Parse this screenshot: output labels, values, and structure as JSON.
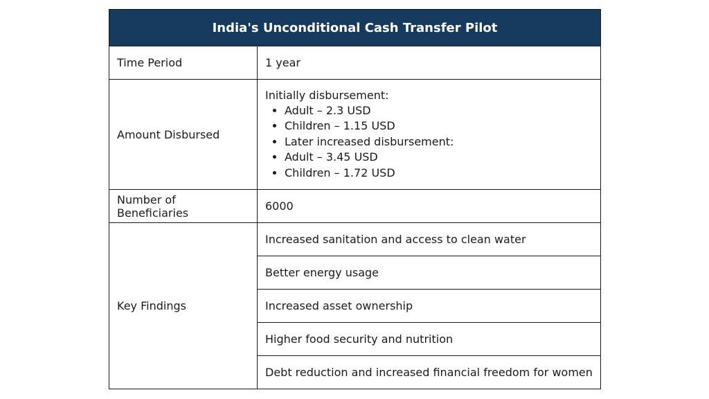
{
  "table": {
    "title": "India's Unconditional Cash Transfer Pilot",
    "time_period": {
      "label": "Time Period",
      "value": "1 year"
    },
    "amount_disbursed": {
      "label": "Amount Disbursed",
      "intro": "Initially disbursement:",
      "items": [
        "Adult – 2.3 USD",
        "Children – 1.15 USD",
        "Later increased disbursement:",
        "Adult – 3.45 USD",
        "Children – 1.72 USD"
      ]
    },
    "beneficiaries": {
      "label": "Number of Beneficiaries",
      "value": "6000"
    },
    "key_findings": {
      "label": "Key Findings",
      "items": [
        "Increased sanitation and access to clean water",
        "Better energy usage",
        "Increased asset ownership",
        "Higher food security and nutrition",
        "Debt reduction and increased financial freedom for women"
      ]
    }
  },
  "colors": {
    "header_bg": "#153a5e",
    "header_text": "#ffffff",
    "border": "#1a1a1a"
  }
}
